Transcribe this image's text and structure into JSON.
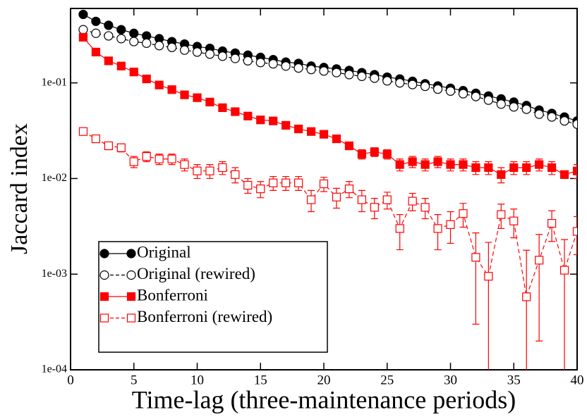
{
  "chart_data": {
    "type": "line",
    "xlabel": "Time-lag (three-maintenance periods)",
    "ylabel": "Jaccard index",
    "x": [
      1,
      2,
      3,
      4,
      5,
      6,
      7,
      8,
      9,
      10,
      11,
      12,
      13,
      14,
      15,
      16,
      17,
      18,
      19,
      20,
      21,
      22,
      23,
      24,
      25,
      26,
      27,
      28,
      29,
      30,
      31,
      32,
      33,
      34,
      35,
      36,
      37,
      38,
      39,
      40
    ],
    "xlim": [
      0,
      40
    ],
    "xticks": [
      0,
      5,
      10,
      15,
      20,
      25,
      30,
      35,
      40
    ],
    "ylim": [
      0.0001,
      0.6
    ],
    "yscale": "log",
    "yticks": [
      {
        "value": 0.0001,
        "label": "1e-04"
      },
      {
        "value": 0.001,
        "label": "1e-03"
      },
      {
        "value": 0.01,
        "label": "1e-02"
      },
      {
        "value": 0.1,
        "label": "1e-01"
      }
    ],
    "legend": "lower left",
    "series": [
      {
        "name": "Original",
        "color": "#000000",
        "marker": "circle",
        "filled": true,
        "linestyle": "solid",
        "values": [
          0.52,
          0.44,
          0.4,
          0.36,
          0.33,
          0.31,
          0.29,
          0.27,
          0.255,
          0.24,
          0.23,
          0.215,
          0.205,
          0.195,
          0.185,
          0.175,
          0.165,
          0.16,
          0.15,
          0.145,
          0.14,
          0.135,
          0.128,
          0.122,
          0.115,
          0.11,
          0.104,
          0.098,
          0.093,
          0.088,
          0.083,
          0.078,
          0.073,
          0.068,
          0.063,
          0.058,
          0.052,
          0.048,
          0.044,
          0.04
        ]
      },
      {
        "name": "Original (rewired)",
        "color": "#000000",
        "marker": "circle",
        "filled": false,
        "linestyle": "dashed",
        "values": [
          0.36,
          0.33,
          0.31,
          0.29,
          0.27,
          0.26,
          0.245,
          0.235,
          0.22,
          0.21,
          0.2,
          0.19,
          0.18,
          0.17,
          0.163,
          0.158,
          0.15,
          0.143,
          0.138,
          0.133,
          0.128,
          0.122,
          0.117,
          0.112,
          0.105,
          0.1,
          0.096,
          0.092,
          0.086,
          0.082,
          0.077,
          0.072,
          0.066,
          0.06,
          0.056,
          0.053,
          0.047,
          0.044,
          0.04,
          0.037
        ]
      },
      {
        "name": "Bonferroni",
        "color": "#ff0000",
        "marker": "square",
        "filled": true,
        "linestyle": "solid",
        "values": [
          0.3,
          0.21,
          0.17,
          0.15,
          0.13,
          0.11,
          0.095,
          0.085,
          0.075,
          0.07,
          0.063,
          0.055,
          0.05,
          0.045,
          0.041,
          0.04,
          0.036,
          0.033,
          0.031,
          0.029,
          0.026,
          0.022,
          0.018,
          0.019,
          0.018,
          0.014,
          0.015,
          0.014,
          0.015,
          0.014,
          0.014,
          0.013,
          0.013,
          0.011,
          0.013,
          0.013,
          0.014,
          0.013,
          0.011,
          0.012
        ],
        "errors": [
          0.01,
          0.008,
          0.006,
          0.005,
          0.004,
          0.004,
          0.003,
          0.003,
          0.003,
          0.003,
          0.002,
          0.002,
          0.002,
          0.002,
          0.002,
          0.002,
          0.002,
          0.002,
          0.002,
          0.002,
          0.002,
          0.002,
          0.002,
          0.002,
          0.002,
          0.002,
          0.002,
          0.002,
          0.002,
          0.002,
          0.002,
          0.002,
          0.002,
          0.002,
          0.002,
          0.002,
          0.002,
          0.002,
          0.001,
          0.002
        ]
      },
      {
        "name": "Bonferroni (rewired)",
        "color": "#ff0000",
        "marker": "square",
        "filled": false,
        "linestyle": "dashed",
        "values": [
          0.031,
          0.026,
          0.022,
          0.021,
          0.015,
          0.017,
          0.016,
          0.016,
          0.014,
          0.012,
          0.012,
          0.013,
          0.011,
          0.0085,
          0.0078,
          0.009,
          0.009,
          0.009,
          0.006,
          0.0088,
          0.0064,
          0.0078,
          0.006,
          0.005,
          0.006,
          0.003,
          0.0058,
          0.005,
          0.003,
          0.0033,
          0.0043,
          0.0015,
          0.00095,
          0.0042,
          0.0036,
          0.00058,
          0.0014,
          0.0034,
          0.0011,
          0.0028
        ],
        "errors": [
          0.002,
          0.002,
          0.002,
          0.002,
          0.002,
          0.002,
          0.002,
          0.002,
          0.002,
          0.002,
          0.002,
          0.002,
          0.002,
          0.0015,
          0.0015,
          0.0015,
          0.0015,
          0.0015,
          0.0015,
          0.0015,
          0.0015,
          0.0015,
          0.0015,
          0.0012,
          0.0012,
          0.0012,
          0.0012,
          0.0012,
          0.0012,
          0.0012,
          0.0012,
          0.0012,
          0.0012,
          0.0012,
          0.0012,
          0.0012,
          0.0012,
          0.0012,
          0.0012,
          0.0012
        ]
      }
    ]
  }
}
